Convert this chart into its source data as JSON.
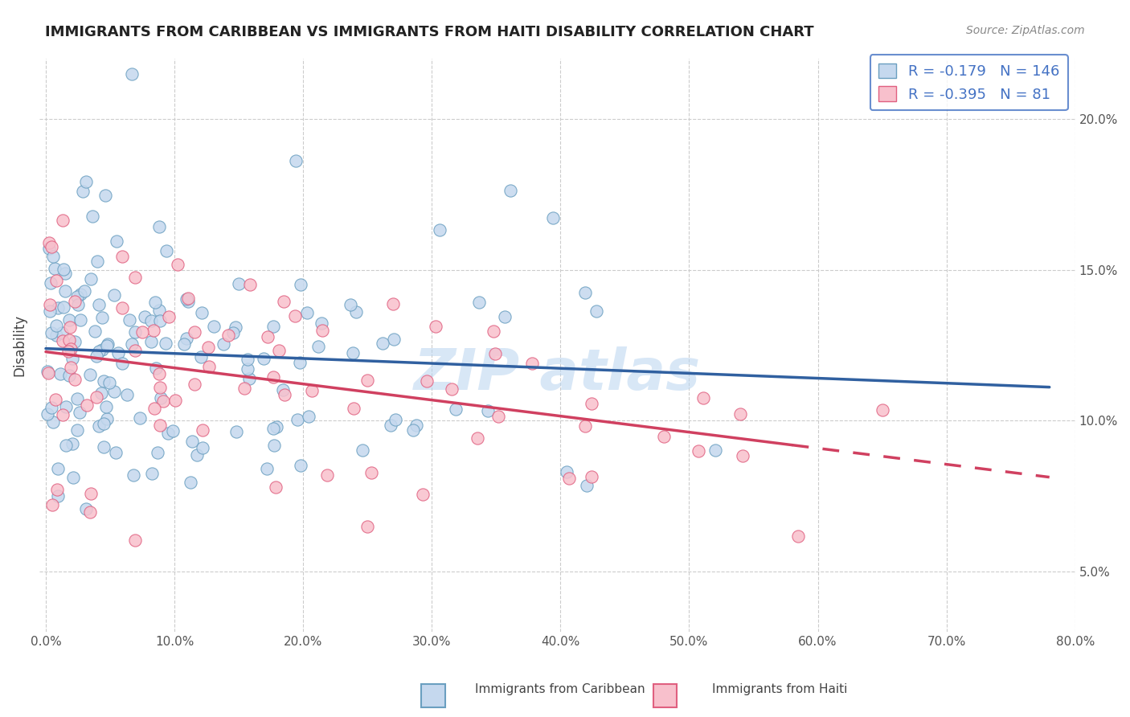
{
  "title": "IMMIGRANTS FROM CARIBBEAN VS IMMIGRANTS FROM HAITI DISABILITY CORRELATION CHART",
  "source": "Source: ZipAtlas.com",
  "watermark": "ZIP atlas",
  "series": [
    {
      "name": "Immigrants from Caribbean",
      "color": "#a8c4e0",
      "fill_color": "#c5d8ee",
      "border_color": "#6a9fc0",
      "R": -0.179,
      "N": 146,
      "trend_color": "#3060a0",
      "trend_solid": true
    },
    {
      "name": "Immigrants from Haiti",
      "color": "#f4a0b0",
      "fill_color": "#f8c0cc",
      "border_color": "#e06080",
      "R": -0.395,
      "N": 81,
      "trend_color": "#d04060",
      "trend_solid": true
    }
  ],
  "xlim": [
    0.0,
    0.8
  ],
  "ylim": [
    0.03,
    0.22
  ],
  "xlabel_ticks": [
    0.0,
    0.1,
    0.2,
    0.3,
    0.4,
    0.5,
    0.6,
    0.7,
    0.8
  ],
  "ylabel_ticks": [
    0.05,
    0.1,
    0.15,
    0.2
  ],
  "background_color": "#ffffff",
  "grid_color": "#cccccc",
  "legend_box_color": "#ffffff",
  "legend_border_color": "#4472c4",
  "title_fontsize": 13,
  "axis_label_color": "#444444",
  "tick_label_color": "#555555",
  "stat_label_color": "#4472c4",
  "ylabel": "Disability"
}
